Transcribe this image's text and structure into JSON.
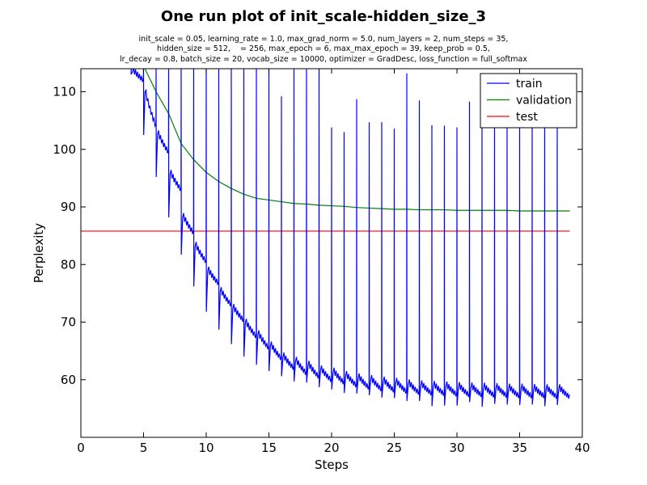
{
  "chart_data": {
    "type": "line",
    "title": "One run plot of init_scale-hidden_size_3",
    "subtitle_lines": [
      "init_scale = 0.05, learning_rate = 1.0, max_grad_norm = 5.0, num_layers = 2, num_steps = 35,",
      "hidden_size = 512,    = 256, max_epoch = 6, max_max_epoch = 39, keep_prob = 0.5,",
      "lr_decay = 0.8, batch_size = 20, vocab_size = 10000, optimizer = GradDesc, loss_function = full_softmax"
    ],
    "xlabel": "Steps",
    "ylabel": "Perplexity",
    "xlim": [
      0,
      40
    ],
    "ylim": [
      50,
      114
    ],
    "xticks": [
      0,
      5,
      10,
      15,
      20,
      25,
      30,
      35,
      40
    ],
    "yticks": [
      60,
      70,
      80,
      90,
      100,
      110
    ],
    "grid": false,
    "legend_position": "top-right",
    "colors": {
      "train": "#0000ff",
      "validation": "#008000",
      "test": "#ff0000"
    },
    "series": [
      {
        "name": "train",
        "per_epoch": {
          "epoch_start": [
            4,
            5,
            6,
            7,
            8,
            9,
            10,
            11,
            12,
            13,
            14,
            15,
            16,
            17,
            18,
            19,
            20,
            21,
            22,
            23,
            24,
            25,
            26,
            27,
            28,
            29,
            30,
            31,
            32,
            33,
            34,
            35,
            36,
            37,
            38
          ],
          "spike_peak": [
            115,
            115,
            115,
            115,
            115,
            115,
            115,
            115,
            115,
            115,
            115,
            115,
            109.2,
            115,
            115,
            115,
            103.8,
            103,
            108.7,
            104.7,
            104.7,
            103.6,
            113.2,
            108.5,
            104.2,
            104.1,
            103.8,
            108.3,
            107.5,
            106,
            105.7,
            105.5,
            105.9,
            107.4,
            106.1
          ],
          "dip_after_spike": [
            113,
            102.5,
            95.2,
            88.2,
            81.7,
            76.2,
            71.8,
            68.7,
            66.2,
            64,
            62.6,
            61.5,
            60.6,
            59.7,
            59.5,
            58.7,
            58.3,
            57.7,
            57.6,
            57.3,
            56.9,
            56.8,
            56.3,
            56.3,
            55.4,
            55.5,
            55.5,
            56.1,
            55.3,
            55.8,
            55.7,
            55.6,
            55.7,
            55.4,
            55.6
          ],
          "epoch_start_value": [
            114.5,
            112,
            104,
            97,
            89.5,
            84.5,
            80,
            76.5,
            73.5,
            71,
            69,
            67,
            65,
            64.3,
            63.6,
            62.7,
            62.3,
            61.7,
            61.3,
            61,
            60.7,
            60.5,
            60.2,
            60,
            59.9,
            59.8,
            59.7,
            59.6,
            59.6,
            59.5,
            59.4,
            59.4,
            59.3,
            59.3,
            59.3
          ],
          "epoch_end_value": [
            112,
            104,
            99.5,
            93,
            85.5,
            80.5,
            76.7,
            73,
            70.3,
            67.5,
            65.5,
            63.7,
            62,
            61.1,
            60.5,
            59.9,
            59.5,
            59,
            58.6,
            58.3,
            58.1,
            57.9,
            57.7,
            57.6,
            57.5,
            57.4,
            57.3,
            57.3,
            57.2,
            57.2,
            57.1,
            57.1,
            57.1,
            57,
            57
          ]
        }
      },
      {
        "name": "validation",
        "x": [
          5,
          6,
          7,
          8,
          9,
          10,
          11,
          12,
          13,
          14,
          15,
          16,
          17,
          18,
          19,
          20,
          21,
          22,
          23,
          24,
          25,
          26,
          27,
          28,
          29,
          30,
          31,
          32,
          33,
          34,
          35,
          36,
          37,
          38,
          39
        ],
        "y": [
          114.5,
          110,
          106.2,
          101,
          98.2,
          96,
          94.4,
          93.2,
          92.2,
          91.5,
          91.2,
          90.9,
          90.6,
          90.5,
          90.3,
          90.2,
          90.1,
          89.9,
          89.8,
          89.7,
          89.6,
          89.6,
          89.5,
          89.5,
          89.5,
          89.4,
          89.4,
          89.4,
          89.4,
          89.4,
          89.3,
          89.3,
          89.3,
          89.3,
          89.3
        ]
      },
      {
        "name": "test",
        "x": [
          0,
          39
        ],
        "y": [
          85.8,
          85.8
        ]
      }
    ]
  }
}
